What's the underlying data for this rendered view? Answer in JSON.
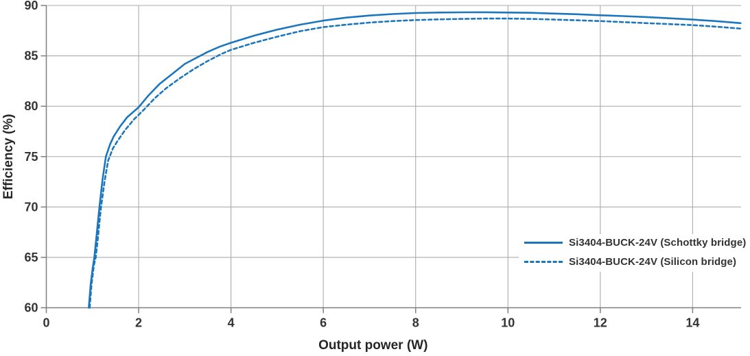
{
  "chart_data": {
    "type": "line",
    "title": "",
    "xlabel": "Output power (W)",
    "ylabel": "Efficiency (%)",
    "xlim": [
      0,
      15.05
    ],
    "ylim": [
      60,
      90
    ],
    "x_ticks": [
      0,
      2,
      4,
      6,
      8,
      10,
      12,
      14
    ],
    "y_ticks": [
      60,
      65,
      70,
      75,
      80,
      85,
      90
    ],
    "grid": true,
    "legend_position": "inside-bottom-right",
    "colors": {
      "line": "#1b76bd",
      "grid": "#ababab",
      "axis": "#7f7f7f",
      "text": "#333333"
    },
    "series": [
      {
        "name": "Si3404-BUCK-24V (Schottky bridge)",
        "style": "solid",
        "points": [
          [
            0.92,
            60
          ],
          [
            0.96,
            62.3
          ],
          [
            1.0,
            63.8
          ],
          [
            1.04,
            65
          ],
          [
            1.09,
            67.2
          ],
          [
            1.15,
            70
          ],
          [
            1.22,
            72.8
          ],
          [
            1.29,
            75
          ],
          [
            1.38,
            76.2
          ],
          [
            1.46,
            77
          ],
          [
            1.6,
            78
          ],
          [
            1.75,
            78.9
          ],
          [
            2.0,
            79.9
          ],
          [
            2.2,
            81.0
          ],
          [
            2.45,
            82.2
          ],
          [
            2.7,
            83.1
          ],
          [
            3.0,
            84.2
          ],
          [
            3.25,
            84.8
          ],
          [
            3.5,
            85.4
          ],
          [
            3.75,
            85.9
          ],
          [
            4.0,
            86.3
          ],
          [
            4.5,
            87.0
          ],
          [
            5.0,
            87.6
          ],
          [
            5.5,
            88.1
          ],
          [
            6.0,
            88.5
          ],
          [
            6.5,
            88.8
          ],
          [
            7.0,
            89.0
          ],
          [
            7.5,
            89.15
          ],
          [
            8.0,
            89.25
          ],
          [
            8.5,
            89.3
          ],
          [
            9.0,
            89.32
          ],
          [
            9.5,
            89.33
          ],
          [
            10.0,
            89.3
          ],
          [
            10.5,
            89.27
          ],
          [
            11.0,
            89.2
          ],
          [
            11.5,
            89.13
          ],
          [
            12.0,
            89.03
          ],
          [
            12.5,
            88.95
          ],
          [
            13.0,
            88.85
          ],
          [
            13.5,
            88.73
          ],
          [
            14.0,
            88.6
          ],
          [
            14.5,
            88.45
          ],
          [
            15.04,
            88.25
          ]
        ]
      },
      {
        "name": "Si3404-BUCK-24V (Silicon bridge)",
        "style": "dashed",
        "points": [
          [
            0.94,
            60
          ],
          [
            0.98,
            62.3
          ],
          [
            1.03,
            64.2
          ],
          [
            1.07,
            65
          ],
          [
            1.12,
            67
          ],
          [
            1.18,
            69.8
          ],
          [
            1.26,
            72.5
          ],
          [
            1.34,
            74.6
          ],
          [
            1.44,
            75.8
          ],
          [
            1.55,
            76.6
          ],
          [
            1.7,
            77.6
          ],
          [
            1.9,
            78.7
          ],
          [
            2.1,
            79.6
          ],
          [
            2.35,
            80.8
          ],
          [
            2.6,
            81.8
          ],
          [
            2.9,
            82.8
          ],
          [
            3.2,
            83.7
          ],
          [
            3.5,
            84.5
          ],
          [
            3.8,
            85.2
          ],
          [
            4.0,
            85.6
          ],
          [
            4.5,
            86.3
          ],
          [
            5.0,
            86.9
          ],
          [
            5.5,
            87.45
          ],
          [
            6.0,
            87.85
          ],
          [
            6.5,
            88.1
          ],
          [
            7.0,
            88.3
          ],
          [
            7.5,
            88.45
          ],
          [
            8.0,
            88.55
          ],
          [
            8.5,
            88.62
          ],
          [
            9.0,
            88.67
          ],
          [
            9.5,
            88.7
          ],
          [
            10.0,
            88.7
          ],
          [
            10.5,
            88.67
          ],
          [
            11.0,
            88.6
          ],
          [
            11.5,
            88.53
          ],
          [
            12.0,
            88.45
          ],
          [
            12.5,
            88.35
          ],
          [
            13.0,
            88.25
          ],
          [
            13.5,
            88.15
          ],
          [
            14.0,
            88.05
          ],
          [
            14.5,
            87.9
          ],
          [
            15.04,
            87.7
          ]
        ]
      }
    ]
  }
}
